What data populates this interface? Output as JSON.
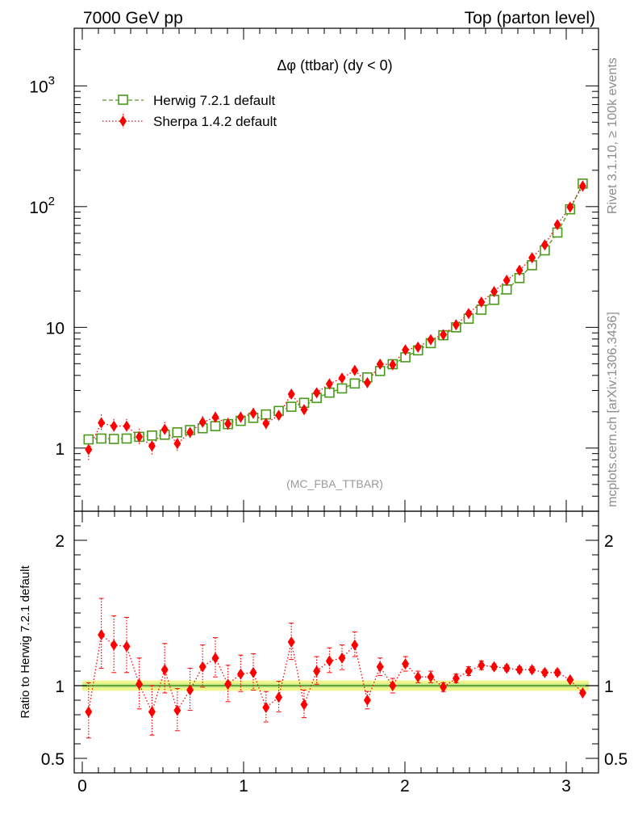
{
  "header": {
    "left": "7000 GeV pp",
    "right": "Top (parton level)"
  },
  "side_labels": {
    "rivet": "Rivet 3.1.10, ≥ 100k events",
    "mcplots": "mcplots.cern.ch [arXiv:1306.3436]"
  },
  "colors": {
    "herwig": "#4a9a1a",
    "sherpa": "#ff0000",
    "band_outer": "#f2f58a",
    "band_inner": "#c6eb8c"
  },
  "chart_data": [
    {
      "type": "scatter",
      "panel": "main",
      "title": "Δφ (ttbar) (dy < 0)",
      "watermark": "(MC_FBA_TTBAR)",
      "yscale": "log",
      "xlim": [
        -0.05,
        3.2
      ],
      "ylim": [
        0.3,
        3000
      ],
      "x_ticks": [
        0,
        1,
        2,
        3
      ],
      "y_tick_labels": [
        {
          "value": 1,
          "label": "1"
        },
        {
          "value": 10,
          "label": "10"
        },
        {
          "value": 100,
          "label": "10",
          "exp": "2"
        },
        {
          "value": 1000,
          "label": "10",
          "exp": "3"
        }
      ],
      "legend_position": "top-left",
      "x": [
        0.039,
        0.118,
        0.196,
        0.275,
        0.353,
        0.432,
        0.511,
        0.589,
        0.668,
        0.746,
        0.825,
        0.903,
        0.982,
        1.06,
        1.139,
        1.218,
        1.296,
        1.375,
        1.453,
        1.532,
        1.61,
        1.689,
        1.767,
        1.846,
        1.924,
        2.003,
        2.081,
        2.16,
        2.238,
        2.317,
        2.395,
        2.474,
        2.553,
        2.631,
        2.71,
        2.788,
        2.867,
        2.945,
        3.024,
        3.102
      ],
      "series": [
        {
          "name": "Herwig 7.2.1 default",
          "marker": "open-square",
          "line": "dashed",
          "values": [
            1.18,
            1.2,
            1.19,
            1.2,
            1.24,
            1.27,
            1.29,
            1.35,
            1.41,
            1.46,
            1.52,
            1.58,
            1.68,
            1.78,
            1.9,
            2.03,
            2.2,
            2.37,
            2.6,
            2.88,
            3.12,
            3.43,
            3.85,
            4.35,
            4.95,
            5.65,
            6.45,
            7.4,
            8.6,
            10.0,
            11.8,
            14.0,
            16.9,
            20.6,
            25.6,
            32.7,
            43.4,
            61.0,
            95.0,
            155.0
          ]
        },
        {
          "name": "Sherpa 1.4.2 default",
          "marker": "filled-diamond",
          "line": "dotted",
          "values": [
            0.97,
            1.62,
            1.52,
            1.52,
            1.24,
            1.04,
            1.43,
            1.09,
            1.35,
            1.64,
            1.8,
            1.59,
            1.8,
            1.94,
            1.6,
            1.87,
            2.8,
            2.08,
            2.87,
            3.4,
            3.8,
            4.4,
            3.48,
            4.96,
            4.9,
            6.5,
            6.85,
            7.9,
            8.7,
            10.5,
            13.0,
            16.2,
            19.8,
            24.5,
            29.7,
            37.7,
            48.2,
            71.0,
            99.0,
            148.0
          ]
        }
      ]
    },
    {
      "type": "scatter",
      "panel": "ratio",
      "ylabel": "Ratio to Herwig 7.2.1 default",
      "xlim": [
        -0.05,
        3.2
      ],
      "ylim": [
        0.4,
        2.2
      ],
      "x_ticks": [
        0,
        1,
        2,
        3
      ],
      "y_tick_labels": [
        {
          "value": 0.5,
          "label": "0.5"
        },
        {
          "value": 1,
          "label": "1"
        },
        {
          "value": 2,
          "label": "2"
        }
      ],
      "reference_line": 1,
      "x": [
        0.039,
        0.118,
        0.196,
        0.275,
        0.353,
        0.432,
        0.511,
        0.589,
        0.668,
        0.746,
        0.825,
        0.903,
        0.982,
        1.06,
        1.139,
        1.218,
        1.296,
        1.375,
        1.453,
        1.532,
        1.61,
        1.689,
        1.767,
        1.846,
        1.924,
        2.003,
        2.081,
        2.16,
        2.238,
        2.317,
        2.395,
        2.474,
        2.553,
        2.631,
        2.71,
        2.788,
        2.867,
        2.945,
        3.024,
        3.102
      ],
      "series": [
        {
          "name": "Sherpa 1.4.2 default",
          "values": [
            0.82,
            1.35,
            1.28,
            1.27,
            1.01,
            0.82,
            1.11,
            0.83,
            0.97,
            1.13,
            1.19,
            1.01,
            1.08,
            1.09,
            0.85,
            0.92,
            1.3,
            0.87,
            1.1,
            1.17,
            1.19,
            1.28,
            0.9,
            1.13,
            1.0,
            1.15,
            1.06,
            1.06,
            0.99,
            1.05,
            1.1,
            1.14,
            1.13,
            1.12,
            1.11,
            1.11,
            1.09,
            1.09,
            1.04,
            0.95
          ],
          "err_up": [
            0.2,
            0.25,
            0.2,
            0.2,
            0.18,
            0.18,
            0.18,
            0.15,
            0.15,
            0.15,
            0.14,
            0.13,
            0.13,
            0.13,
            0.11,
            0.11,
            0.13,
            0.1,
            0.1,
            0.09,
            0.09,
            0.09,
            0.06,
            0.06,
            0.05,
            0.05,
            0.04,
            0.04,
            0.03,
            0.03,
            0.03,
            0.03,
            0.02,
            0.02,
            0.02,
            0.02,
            0.02,
            0.02,
            0.01,
            0.01
          ],
          "err_down": [
            0.18,
            0.23,
            0.19,
            0.18,
            0.17,
            0.16,
            0.16,
            0.14,
            0.14,
            0.14,
            0.13,
            0.12,
            0.12,
            0.12,
            0.1,
            0.1,
            0.12,
            0.09,
            0.09,
            0.08,
            0.08,
            0.08,
            0.06,
            0.06,
            0.05,
            0.05,
            0.04,
            0.04,
            0.03,
            0.03,
            0.03,
            0.03,
            0.02,
            0.02,
            0.02,
            0.02,
            0.02,
            0.02,
            0.01,
            0.01
          ]
        }
      ]
    }
  ]
}
